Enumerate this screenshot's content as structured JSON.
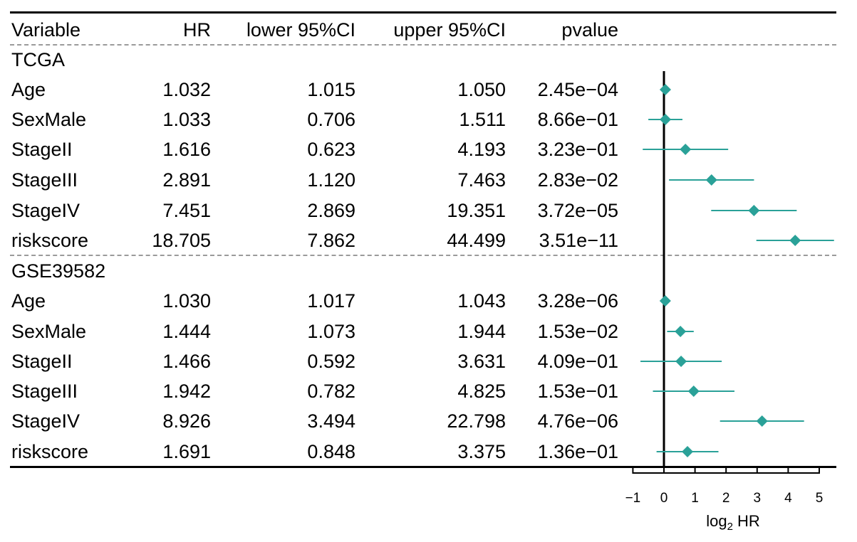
{
  "table": {
    "headers": {
      "variable": "Variable",
      "hr": "HR",
      "lower": "lower 95%CI",
      "upper": "upper 95%CI",
      "pvalue": "pvalue"
    }
  },
  "chart_data": {
    "type": "forest",
    "x_axis": {
      "label_main": "log",
      "label_sub": "2",
      "label_rest": " HR",
      "ticks": [
        -1,
        0,
        1,
        2,
        3,
        4,
        5
      ],
      "tick_labels": [
        "−1",
        "0",
        "1",
        "2",
        "3",
        "4",
        "5"
      ],
      "range": [
        -1,
        5.5
      ],
      "reference_line": 0
    },
    "marker_color": "#2aa198",
    "groups": [
      {
        "name": "TCGA",
        "rows": [
          {
            "variable": "Age",
            "hr": "1.032",
            "lower": "1.015",
            "upper": "1.050",
            "pvalue": "2.45e−04",
            "hr_value": 1.032,
            "lower_value": 1.015,
            "upper_value": 1.05
          },
          {
            "variable": "SexMale",
            "hr": "1.033",
            "lower": "0.706",
            "upper": "1.511",
            "pvalue": "8.66e−01",
            "hr_value": 1.033,
            "lower_value": 0.706,
            "upper_value": 1.511
          },
          {
            "variable": "StageII",
            "hr": "1.616",
            "lower": "0.623",
            "upper": "4.193",
            "pvalue": "3.23e−01",
            "hr_value": 1.616,
            "lower_value": 0.623,
            "upper_value": 4.193
          },
          {
            "variable": "StageIII",
            "hr": "2.891",
            "lower": "1.120",
            "upper": "7.463",
            "pvalue": "2.83e−02",
            "hr_value": 2.891,
            "lower_value": 1.12,
            "upper_value": 7.463
          },
          {
            "variable": "StageIV",
            "hr": "7.451",
            "lower": "2.869",
            "upper": "19.351",
            "pvalue": "3.72e−05",
            "hr_value": 7.451,
            "lower_value": 2.869,
            "upper_value": 19.351
          },
          {
            "variable": "riskscore",
            "hr": "18.705",
            "lower": "7.862",
            "upper": "44.499",
            "pvalue": "3.51e−11",
            "hr_value": 18.705,
            "lower_value": 7.862,
            "upper_value": 44.499
          }
        ]
      },
      {
        "name": "GSE39582",
        "rows": [
          {
            "variable": "Age",
            "hr": "1.030",
            "lower": "1.017",
            "upper": "1.043",
            "pvalue": "3.28e−06",
            "hr_value": 1.03,
            "lower_value": 1.017,
            "upper_value": 1.043
          },
          {
            "variable": "SexMale",
            "hr": "1.444",
            "lower": "1.073",
            "upper": "1.944",
            "pvalue": "1.53e−02",
            "hr_value": 1.444,
            "lower_value": 1.073,
            "upper_value": 1.944
          },
          {
            "variable": "StageII",
            "hr": "1.466",
            "lower": "0.592",
            "upper": "3.631",
            "pvalue": "4.09e−01",
            "hr_value": 1.466,
            "lower_value": 0.592,
            "upper_value": 3.631
          },
          {
            "variable": "StageIII",
            "hr": "1.942",
            "lower": "0.782",
            "upper": "4.825",
            "pvalue": "1.53e−01",
            "hr_value": 1.942,
            "lower_value": 0.782,
            "upper_value": 4.825
          },
          {
            "variable": "StageIV",
            "hr": "8.926",
            "lower": "3.494",
            "upper": "22.798",
            "pvalue": "4.76e−06",
            "hr_value": 8.926,
            "lower_value": 3.494,
            "upper_value": 22.798
          },
          {
            "variable": "riskscore",
            "hr": "1.691",
            "lower": "0.848",
            "upper": "3.375",
            "pvalue": "1.36e−01",
            "hr_value": 1.691,
            "lower_value": 0.848,
            "upper_value": 3.375
          }
        ]
      }
    ]
  }
}
